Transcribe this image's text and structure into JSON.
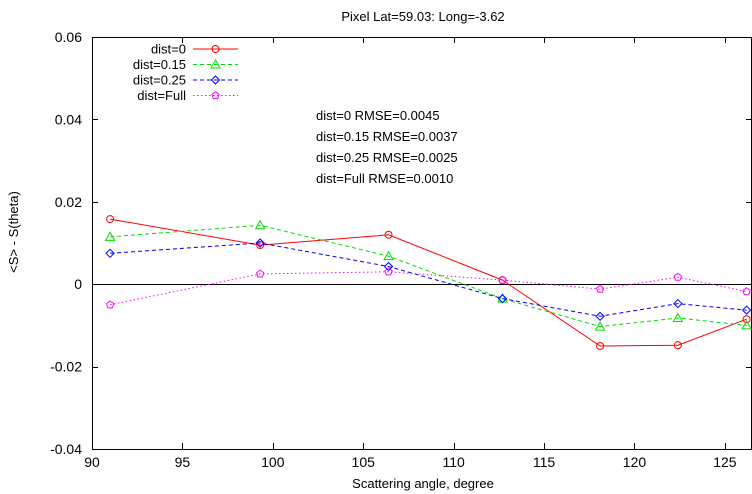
{
  "chart_data": {
    "type": "line",
    "title": "Pixel Lat=59.03: Long=-3.62",
    "xlabel": "Scattering angle, degree",
    "ylabel": "<S> - S(theta)",
    "xlim": [
      90,
      126.5
    ],
    "ylim": [
      -0.04,
      0.06
    ],
    "x_ticks": [
      90,
      95,
      100,
      105,
      110,
      115,
      120,
      125
    ],
    "x_tick_labels": [
      "90",
      "95",
      "100",
      "105",
      "110",
      "115",
      "120",
      "125"
    ],
    "y_ticks": [
      -0.04,
      -0.02,
      0,
      0.02,
      0.04,
      0.06
    ],
    "y_tick_labels": [
      "-0.04",
      "-0.02",
      "0",
      "0.02",
      "0.04",
      "0.06"
    ],
    "zero_line": true,
    "grid": false,
    "legend_position": "top-left",
    "series": [
      {
        "name": "dist=0",
        "color": "#ff0000",
        "marker": "circle",
        "dash": "solid",
        "x": [
          91.0,
          99.3,
          106.4,
          112.7,
          118.1,
          122.4,
          126.2
        ],
        "y": [
          0.0158,
          0.0095,
          0.012,
          0.001,
          -0.015,
          -0.0148,
          -0.0085
        ]
      },
      {
        "name": "dist=0.15",
        "color": "#00dd00",
        "marker": "triangle",
        "dash": "dashed",
        "x": [
          91.0,
          99.3,
          106.4,
          112.7,
          118.1,
          122.4,
          126.2
        ],
        "y": [
          0.0115,
          0.0143,
          0.0068,
          -0.0035,
          -0.0103,
          -0.0082,
          -0.01
        ]
      },
      {
        "name": "dist=0.25",
        "color": "#0000ff",
        "marker": "diamond",
        "dash": "dashed",
        "x": [
          91.0,
          99.3,
          106.4,
          112.7,
          118.1,
          122.4,
          126.2
        ],
        "y": [
          0.0075,
          0.01,
          0.0043,
          -0.0035,
          -0.0078,
          -0.0047,
          -0.0063
        ]
      },
      {
        "name": "dist=Full",
        "color": "#ff00ff",
        "marker": "pentagon",
        "dash": "dotted",
        "x": [
          91.0,
          99.3,
          106.4,
          112.7,
          118.1,
          122.4,
          126.2
        ],
        "y": [
          -0.005,
          0.0025,
          0.003,
          0.001,
          -0.0012,
          0.0017,
          -0.0018
        ]
      }
    ],
    "annotations": [
      "dist=0 RMSE=0.0045",
      "dist=0.15 RMSE=0.0037",
      "dist=0.25 RMSE=0.0025",
      "dist=Full RMSE=0.0010"
    ]
  }
}
